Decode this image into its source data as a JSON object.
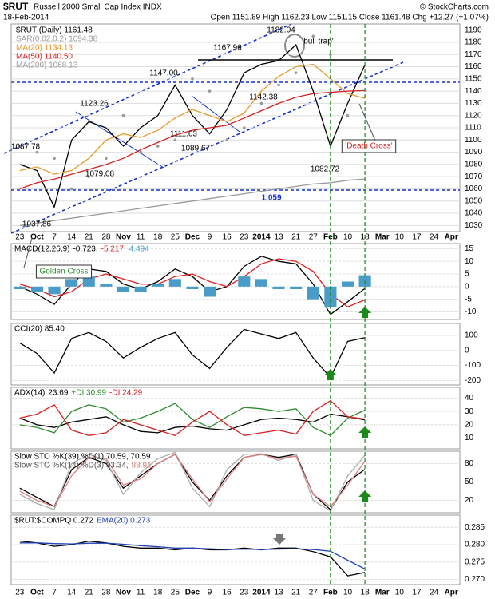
{
  "chart_data": [
    {
      "type": "line",
      "symbol": "$RUT",
      "title": "Russell 2000 Small Cap Index INDX",
      "date": "18-Feb-2014",
      "quote": "Open 1151.89 High 1162.23 Low 1151.15 Close 1161.48 Chg +12.27 (+1.07%)",
      "source": "© StockCharts.com",
      "categories": [
        "23",
        "Oct",
        "7",
        "14",
        "21",
        "28",
        "Nov",
        "11",
        "18",
        "25",
        "Dec",
        "9",
        "16",
        "23",
        "2014",
        "13",
        "21",
        "27",
        "Feb",
        "10",
        "18",
        "Mar",
        "10",
        "17",
        "24",
        "Apr"
      ],
      "ylim": [
        1025,
        1195
      ],
      "yticks": [
        1030,
        1040,
        1050,
        1060,
        1070,
        1080,
        1090,
        1100,
        1110,
        1120,
        1130,
        1140,
        1150,
        1160,
        1170,
        1180,
        1190
      ],
      "grid": true,
      "series": [
        {
          "name": "$RUT (Daily) 1161.48",
          "color": "#000000",
          "style": "line",
          "values": [
            1080,
            1075,
            1045,
            1100,
            1115,
            1110,
            1095,
            1110,
            1120,
            1145,
            1120,
            1105,
            1125,
            1155,
            1162,
            1165,
            1178,
            1140,
            1095,
            1130,
            1161.48,
            null,
            null,
            null,
            null,
            null
          ]
        },
        {
          "name": "SAR(0.02,0.2) 1094.38",
          "color": "#999999",
          "style": "dots",
          "values": [
            1095,
            1090,
            1085,
            1060,
            1070,
            1085,
            1120,
            1090,
            1095,
            1100,
            1150,
            1140,
            1100,
            1110,
            1130,
            1145,
            1155,
            1185,
            1170,
            1120,
            1094.38,
            null,
            null,
            null,
            null,
            null
          ]
        },
        {
          "name": "MA(20) 1134.13",
          "color": "#e69b2c",
          "style": "line",
          "values": [
            1075,
            1078,
            1072,
            1075,
            1085,
            1100,
            1105,
            1102,
            1108,
            1118,
            1125,
            1120,
            1115,
            1122,
            1140,
            1152,
            1160,
            1162,
            1150,
            1138,
            1134.13,
            null,
            null,
            null,
            null,
            null
          ]
        },
        {
          "name": "MA(50) 1140.50",
          "color": "#d62020",
          "style": "line",
          "values": [
            1060,
            1065,
            1068,
            1072,
            1076,
            1080,
            1085,
            1092,
            1098,
            1104,
            1108,
            1110,
            1112,
            1118,
            1124,
            1130,
            1135,
            1138,
            1139,
            1140,
            1140.5,
            null,
            null,
            null,
            null,
            null
          ]
        },
        {
          "name": "MA(200) 1068.13",
          "color": "#9a9a9a",
          "style": "line",
          "values": [
            1030,
            1032,
            1034,
            1036,
            1038,
            1040,
            1042,
            1044,
            1046,
            1048,
            1050,
            1052,
            1054,
            1056,
            1058,
            1060,
            1062,
            1064,
            1065,
            1067,
            1068.13,
            null,
            null,
            null,
            null,
            null
          ]
        }
      ],
      "hlines": [
        {
          "value": 1059,
          "label": "1,059"
        }
      ],
      "annotations": [
        "1087.78",
        "1123.26",
        "1147.00",
        "1167.96",
        "1182.04",
        "1079.08",
        "1111.63",
        "1089.67",
        "1142.38",
        "1082.72",
        "1037.86",
        "'bull trap'",
        "'Death Cross'",
        "Golden Cross"
      ]
    },
    {
      "type": "line",
      "title": "MACD(12,26,9)",
      "ylim": [
        -13,
        17
      ],
      "yticks": [
        -10,
        -5,
        0,
        5,
        10,
        15
      ],
      "grid": true,
      "series": [
        {
          "name": "-0.723,",
          "color": "#000000",
          "style": "line",
          "values": [
            0,
            -3,
            -7,
            1,
            7,
            6,
            1,
            -1,
            2,
            7,
            4,
            -2,
            0,
            8,
            12,
            10,
            9,
            1,
            -11,
            -6,
            -0.723,
            null,
            null,
            null,
            null,
            null
          ]
        },
        {
          "name": "-5.217,",
          "color": "#e02020",
          "style": "line",
          "values": [
            1,
            -1,
            -4,
            -2,
            3,
            5,
            3,
            1,
            1,
            4,
            5,
            2,
            0,
            4,
            9,
            11,
            10,
            6,
            -3,
            -8,
            -5.217,
            null,
            null,
            null,
            null,
            null
          ]
        },
        {
          "name": "4.494",
          "color": "#4a9cc8",
          "style": "bars",
          "values": [
            -1,
            -2,
            -3,
            3,
            4,
            1,
            -2,
            -2,
            1,
            3,
            -1,
            -4,
            0,
            4,
            3,
            -1,
            -1,
            -5,
            -8,
            2,
            4.494,
            null,
            null,
            null,
            null,
            null
          ]
        }
      ]
    },
    {
      "type": "line",
      "ylim": [
        -230,
        180
      ],
      "yticks": [
        -200,
        -100,
        0,
        100
      ],
      "grid": true,
      "series": [
        {
          "name": "CCI(20) 85.40",
          "color": "#000000",
          "style": "line",
          "values": [
            50,
            -20,
            -150,
            80,
            120,
            60,
            -50,
            20,
            80,
            120,
            -30,
            -120,
            20,
            140,
            110,
            80,
            120,
            -50,
            -180,
            60,
            85.4,
            null,
            null,
            null,
            null,
            null
          ]
        }
      ]
    },
    {
      "type": "line",
      "title": "ADX(14)",
      "ylim": [
        2,
        48
      ],
      "yticks": [
        10,
        20,
        30,
        40
      ],
      "grid": true,
      "series": [
        {
          "name": "23.69",
          "color": "#000000",
          "style": "line",
          "values": [
            25,
            20,
            18,
            22,
            24,
            26,
            20,
            15,
            14,
            18,
            19,
            17,
            16,
            20,
            24,
            25,
            24,
            22,
            28,
            26,
            23.69,
            null,
            null,
            null,
            null,
            null
          ]
        },
        {
          "name": "+DI 30.99",
          "color": "#2e8b2e",
          "style": "line",
          "values": [
            20,
            18,
            14,
            30,
            35,
            32,
            22,
            25,
            30,
            36,
            24,
            18,
            26,
            33,
            32,
            30,
            32,
            18,
            12,
            25,
            30.99,
            null,
            null,
            null,
            null,
            null
          ]
        },
        {
          "name": "-DI 24.29",
          "color": "#d62020",
          "style": "line",
          "values": [
            25,
            28,
            35,
            16,
            12,
            14,
            24,
            20,
            16,
            12,
            22,
            30,
            20,
            12,
            14,
            16,
            13,
            30,
            38,
            26,
            24.29,
            null,
            null,
            null,
            null,
            null
          ]
        }
      ]
    },
    {
      "type": "line",
      "ylim": [
        0,
        100
      ],
      "yticks": [
        20,
        50,
        80
      ],
      "grid": true,
      "series": [
        {
          "name": "Slow STO %K(39) %D(1) 70.59, 70.59",
          "color": "#000000",
          "style": "line",
          "values": [
            40,
            25,
            10,
            70,
            90,
            80,
            40,
            60,
            80,
            95,
            50,
            20,
            60,
            90,
            95,
            90,
            95,
            30,
            5,
            50,
            70.59,
            null,
            null,
            null,
            null,
            null
          ]
        },
        {
          "name": "Slow STO %K(14) %D(3) 93.34,",
          "color": "#aaaaaa",
          "style": "line",
          "values": [
            30,
            15,
            5,
            80,
            95,
            85,
            30,
            65,
            88,
            98,
            40,
            10,
            70,
            95,
            96,
            85,
            95,
            20,
            3,
            60,
            93.34,
            null,
            null,
            null,
            null,
            null
          ]
        },
        {
          "name": "83.91",
          "color": "#e08080",
          "style": "line",
          "values": [
            35,
            20,
            10,
            60,
            90,
            88,
            45,
            55,
            80,
            95,
            55,
            18,
            55,
            90,
            95,
            88,
            92,
            30,
            10,
            45,
            83.91,
            null,
            null,
            null,
            null,
            null
          ]
        }
      ]
    },
    {
      "type": "line",
      "ylim": [
        0.2685,
        0.2885
      ],
      "yticks": [
        {
          "value": 0.27,
          "label": "0.270"
        },
        0.275,
        {
          "value": 0.28,
          "label": "0.280"
        },
        0.285
      ],
      "grid": true,
      "series": [
        {
          "name": "$RUT:$COMPQ 0.272",
          "color": "#000000",
          "style": "line",
          "values": [
            0.281,
            0.2805,
            0.2795,
            0.28,
            0.281,
            0.2805,
            0.2795,
            0.279,
            0.279,
            0.2785,
            0.279,
            0.2785,
            0.2785,
            0.279,
            0.2785,
            0.279,
            0.279,
            0.278,
            0.2765,
            0.271,
            0.272,
            null,
            null,
            null,
            null,
            null
          ]
        },
        {
          "name": "EMA(20) 0.273",
          "color": "#1f3fb0",
          "style": "line",
          "values": [
            0.2805,
            0.2805,
            0.2803,
            0.2802,
            0.2804,
            0.2804,
            0.2801,
            0.2797,
            0.2794,
            0.279,
            0.279,
            0.2788,
            0.2786,
            0.2787,
            0.2786,
            0.2787,
            0.2788,
            0.2786,
            0.2781,
            0.2755,
            0.273,
            null,
            null,
            null,
            null,
            null
          ]
        }
      ]
    }
  ]
}
